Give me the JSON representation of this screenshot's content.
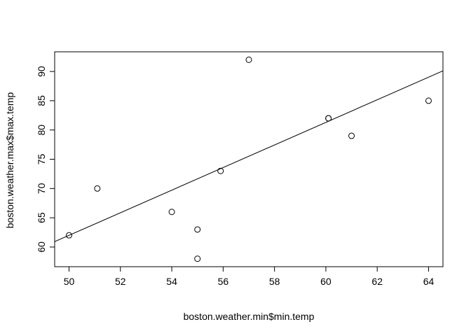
{
  "chart_data": {
    "type": "scatter",
    "title": "",
    "xlabel": "boston.weather.min$min.temp",
    "ylabel": "boston.weather.max$max.temp",
    "xlim": [
      49.44,
      64.56
    ],
    "ylim": [
      56.64,
      93.36
    ],
    "x_ticks": [
      50,
      52,
      54,
      56,
      58,
      60,
      62,
      64
    ],
    "y_ticks": [
      60,
      65,
      70,
      75,
      80,
      85,
      90
    ],
    "points": [
      {
        "x": 50.0,
        "y": 62.0
      },
      {
        "x": 51.1,
        "y": 70.0
      },
      {
        "x": 54.0,
        "y": 66.0
      },
      {
        "x": 55.0,
        "y": 63.0
      },
      {
        "x": 55.0,
        "y": 58.0
      },
      {
        "x": 55.9,
        "y": 73.0
      },
      {
        "x": 57.0,
        "y": 92.0
      },
      {
        "x": 60.1,
        "y": 82.0
      },
      {
        "x": 60.1,
        "y": 82.0
      },
      {
        "x": 61.0,
        "y": 79.0
      },
      {
        "x": 64.0,
        "y": 85.0
      }
    ],
    "regression_line": {
      "intercept": -34.5,
      "slope": 1.93
    },
    "grid": false,
    "legend": "none",
    "point_style": "open-circle",
    "color": "#000000"
  }
}
